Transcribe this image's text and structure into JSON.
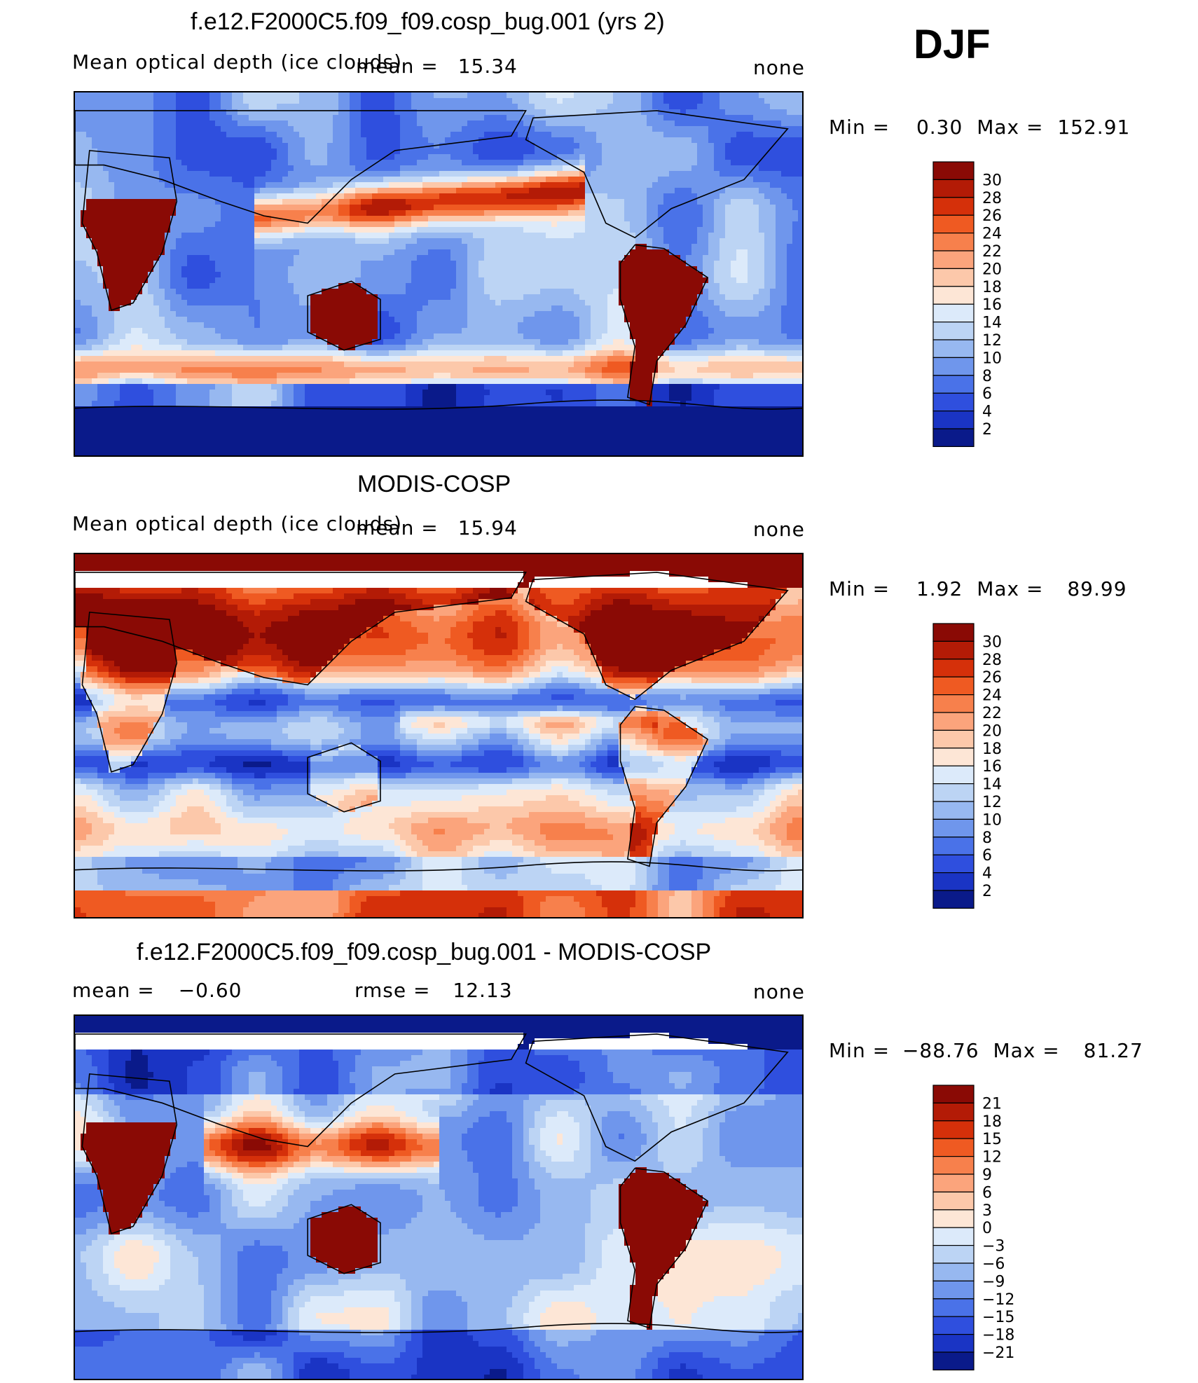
{
  "season": "DJF",
  "panels": [
    {
      "title": "f.e12.F2000C5.f09_f09.cosp_bug.001 (yrs 2)",
      "variable": "Mean optical depth (ice clouds)",
      "stat_label": "mean =",
      "stat_value": "15.34",
      "units": "none",
      "min_label": "Min  =",
      "min_value": "0.30",
      "max_label": "Max  =",
      "max_value": "152.91",
      "map_kind": "model"
    },
    {
      "title": "MODIS-COSP",
      "variable": "Mean optical depth (ice clouds)",
      "stat_label": "mean =",
      "stat_value": "15.94",
      "units": "none",
      "min_label": "Min  =",
      "min_value": "1.92",
      "max_label": "Max  =",
      "max_value": "89.99",
      "map_kind": "obs"
    },
    {
      "title": "f.e12.F2000C5.f09_f09.cosp_bug.001 - MODIS-COSP",
      "stat_label": "mean  =",
      "stat_value": "−0.60",
      "rmse_label": "rmse  =",
      "rmse_value": "12.13",
      "units": "none",
      "min_label": "Min  =",
      "min_value": "−88.76",
      "max_label": "Max  =",
      "max_value": "81.27",
      "map_kind": "diff"
    }
  ],
  "chart_data": [
    {
      "type": "heatmap",
      "title": "f.e12.F2000C5.f09_f09.cosp_bug.001 (yrs 2)",
      "variable": "Mean optical depth (ice clouds)",
      "mean": 15.34,
      "min": 0.3,
      "max": 152.91,
      "units": "none",
      "colorbar_levels": [
        2,
        4,
        6,
        8,
        10,
        12,
        14,
        16,
        18,
        20,
        22,
        24,
        26,
        28,
        30
      ]
    },
    {
      "type": "heatmap",
      "title": "MODIS-COSP",
      "variable": "Mean optical depth (ice clouds)",
      "mean": 15.94,
      "min": 1.92,
      "max": 89.99,
      "units": "none",
      "colorbar_levels": [
        2,
        4,
        6,
        8,
        10,
        12,
        14,
        16,
        18,
        20,
        22,
        24,
        26,
        28,
        30
      ]
    },
    {
      "type": "heatmap",
      "title": "f.e12.F2000C5.f09_f09.cosp_bug.001 - MODIS-COSP",
      "mean": -0.6,
      "rmse": 12.13,
      "min": -88.76,
      "max": 81.27,
      "units": "none",
      "colorbar_levels": [
        -21,
        -18,
        -15,
        -12,
        -9,
        -6,
        -3,
        0,
        3,
        6,
        9,
        12,
        15,
        18,
        21
      ]
    }
  ],
  "colorbars": [
    {
      "labels": [
        "30",
        "28",
        "26",
        "24",
        "22",
        "20",
        "18",
        "16",
        "14",
        "12",
        "10",
        "8",
        "6",
        "4",
        "2"
      ],
      "colors": [
        "#8a0a05",
        "#b31b06",
        "#d5300a",
        "#ef5a22",
        "#f7804c",
        "#fba47c",
        "#fcc8aa",
        "#fde6d6",
        "#dceafa",
        "#bcd4f4",
        "#97b8f0",
        "#6f96ec",
        "#4a72e8",
        "#2f4fde",
        "#1a34c4",
        "#0a1a8a"
      ]
    },
    {
      "labels": [
        "30",
        "28",
        "26",
        "24",
        "22",
        "20",
        "18",
        "16",
        "14",
        "12",
        "10",
        "8",
        "6",
        "4",
        "2"
      ],
      "colors": [
        "#8a0a05",
        "#b31b06",
        "#d5300a",
        "#ef5a22",
        "#f7804c",
        "#fba47c",
        "#fcc8aa",
        "#fde6d6",
        "#dceafa",
        "#bcd4f4",
        "#97b8f0",
        "#6f96ec",
        "#4a72e8",
        "#2f4fde",
        "#1a34c4",
        "#0a1a8a"
      ]
    },
    {
      "labels": [
        "21",
        "18",
        "15",
        "12",
        "9",
        "6",
        "3",
        "0",
        "−3",
        "−6",
        "−9",
        "−12",
        "−15",
        "−18",
        "−21"
      ],
      "colors": [
        "#8a0a05",
        "#b31b06",
        "#d5300a",
        "#ef5a22",
        "#f7804c",
        "#fba47c",
        "#fcc8aa",
        "#fde6d6",
        "#dceafa",
        "#bcd4f4",
        "#97b8f0",
        "#6f96ec",
        "#4a72e8",
        "#2f4fde",
        "#1a34c4",
        "#0a1a8a"
      ]
    }
  ]
}
